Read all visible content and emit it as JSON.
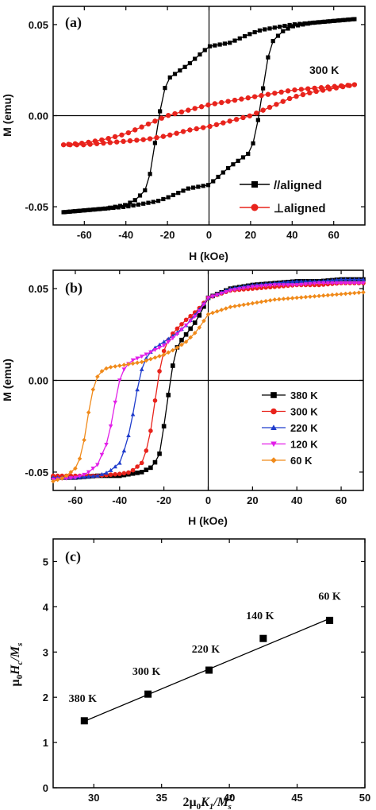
{
  "chart_data": [
    {
      "panel_label": "(a)",
      "type": "line",
      "annotation": "300 K",
      "xlabel": "H (kOe)",
      "ylabel": "M (emu)",
      "xlim": [
        -75,
        75
      ],
      "ylim": [
        -0.06,
        0.06
      ],
      "xticks": [
        -60,
        -40,
        -20,
        0,
        20,
        40,
        60
      ],
      "yticks": [
        -0.05,
        0.0,
        0.05
      ],
      "ytick_labels": [
        "-0.05",
        "0.00",
        "0.05"
      ],
      "legend_position": "bottom-right",
      "series": [
        {
          "name": "//aligned",
          "color": "#000000",
          "marker": "square",
          "branch_down": {
            "x": [
              70,
              60,
              50,
              40,
              30,
              25,
              20,
              10,
              0,
              -10,
              -20,
              -22,
              -24,
              -26,
              -28,
              -30,
              -35,
              -40,
              -50,
              -60,
              -70
            ],
            "y": [
              0.053,
              0.052,
              0.051,
              0.05,
              0.048,
              0.047,
              0.045,
              0.04,
              0.038,
              0.028,
              0.02,
              0.012,
              0.0,
              -0.015,
              -0.03,
              -0.04,
              -0.046,
              -0.049,
              -0.051,
              -0.052,
              -0.053
            ]
          },
          "branch_up": {
            "x": [
              -70,
              -60,
              -50,
              -40,
              -30,
              -25,
              -20,
              -10,
              0,
              10,
              20,
              22,
              24,
              26,
              28,
              30,
              35,
              40,
              50,
              60,
              70
            ],
            "y": [
              -0.053,
              -0.052,
              -0.051,
              -0.05,
              -0.048,
              -0.047,
              -0.045,
              -0.04,
              -0.038,
              -0.028,
              -0.02,
              -0.012,
              0.0,
              0.015,
              0.03,
              0.04,
              0.046,
              0.049,
              0.051,
              0.052,
              0.053
            ]
          }
        },
        {
          "name": "⊥aligned",
          "color": "#e8231c",
          "marker": "circle",
          "branch_down": {
            "x": [
              70,
              60,
              50,
              40,
              30,
              20,
              10,
              0,
              -10,
              -20,
              -30,
              -40,
              -50,
              -60,
              -70
            ],
            "y": [
              0.017,
              0.016,
              0.015,
              0.014,
              0.012,
              0.01,
              0.008,
              0.006,
              0.003,
              0.0,
              -0.005,
              -0.01,
              -0.013,
              -0.015,
              -0.016
            ]
          },
          "branch_up": {
            "x": [
              -70,
              -60,
              -50,
              -40,
              -30,
              -20,
              -10,
              0,
              10,
              20,
              30,
              40,
              50,
              60,
              70
            ],
            "y": [
              -0.016,
              -0.016,
              -0.015,
              -0.014,
              -0.013,
              -0.011,
              -0.008,
              -0.006,
              -0.003,
              0.0,
              0.005,
              0.01,
              0.013,
              0.015,
              0.017
            ]
          }
        }
      ]
    },
    {
      "panel_label": "(b)",
      "type": "line",
      "xlabel": "H (kOe)",
      "ylabel": "M (emu)",
      "xlim": [
        -70,
        70
      ],
      "ylim": [
        -0.06,
        0.06
      ],
      "xticks": [
        -60,
        -40,
        -20,
        0,
        20,
        40,
        60
      ],
      "yticks": [
        -0.05,
        0.0,
        0.05
      ],
      "ytick_labels": [
        "-0.05",
        "0.00",
        "0.05"
      ],
      "legend_position": "bottom-right",
      "series": [
        {
          "name": "380 K",
          "color": "#000000",
          "marker": "square",
          "x": [
            -70,
            -60,
            -50,
            -40,
            -30,
            -25,
            -22,
            -20,
            -18,
            -16,
            -14,
            -12,
            -10,
            -5,
            0,
            10,
            20,
            30,
            40,
            50,
            60,
            70
          ],
          "y": [
            -0.053,
            -0.053,
            -0.052,
            -0.052,
            -0.05,
            -0.047,
            -0.04,
            -0.025,
            -0.008,
            0.008,
            0.018,
            0.022,
            0.025,
            0.033,
            0.045,
            0.05,
            0.052,
            0.053,
            0.054,
            0.054,
            0.055,
            0.055
          ]
        },
        {
          "name": "300 K",
          "color": "#e8231c",
          "marker": "circle",
          "x": [
            -70,
            -60,
            -50,
            -40,
            -35,
            -30,
            -27,
            -25,
            -23,
            -21,
            -19,
            -17,
            -15,
            -10,
            -5,
            0,
            10,
            20,
            30,
            40,
            50,
            60,
            70
          ],
          "y": [
            -0.052,
            -0.052,
            -0.052,
            -0.051,
            -0.05,
            -0.045,
            -0.035,
            -0.02,
            -0.002,
            0.012,
            0.02,
            0.024,
            0.027,
            0.033,
            0.038,
            0.045,
            0.049,
            0.05,
            0.051,
            0.052,
            0.052,
            0.053,
            0.053
          ]
        },
        {
          "name": "220 K",
          "color": "#1f3ccc",
          "marker": "triangle-up",
          "x": [
            -70,
            -60,
            -50,
            -45,
            -40,
            -37,
            -35,
            -33,
            -31,
            -29,
            -27,
            -25,
            -20,
            -15,
            -10,
            -5,
            0,
            10,
            20,
            30,
            40,
            50,
            60,
            70
          ],
          "y": [
            -0.053,
            -0.053,
            -0.052,
            -0.05,
            -0.045,
            -0.035,
            -0.025,
            -0.012,
            0.002,
            0.01,
            0.014,
            0.017,
            0.021,
            0.025,
            0.03,
            0.037,
            0.045,
            0.05,
            0.052,
            0.053,
            0.054,
            0.054,
            0.055,
            0.055
          ]
        },
        {
          "name": "120 K",
          "color": "#e21fe8",
          "marker": "triangle-down",
          "x": [
            -70,
            -60,
            -55,
            -50,
            -46,
            -44,
            -42,
            -40,
            -38,
            -36,
            -34,
            -30,
            -25,
            -20,
            -15,
            -10,
            -5,
            0,
            10,
            20,
            30,
            40,
            50,
            60,
            70
          ],
          "y": [
            -0.054,
            -0.053,
            -0.051,
            -0.046,
            -0.035,
            -0.025,
            -0.012,
            0.0,
            0.006,
            0.009,
            0.011,
            0.013,
            0.016,
            0.019,
            0.024,
            0.03,
            0.036,
            0.045,
            0.049,
            0.051,
            0.052,
            0.052,
            0.053,
            0.053,
            0.053
          ]
        },
        {
          "name": "60  K",
          "color": "#f08a1a",
          "marker": "diamond",
          "x": [
            -70,
            -65,
            -60,
            -57,
            -55,
            -53,
            -51,
            -49,
            -47,
            -45,
            -40,
            -35,
            -30,
            -25,
            -20,
            -15,
            -10,
            -5,
            0,
            10,
            20,
            30,
            40,
            50,
            60,
            70
          ],
          "y": [
            -0.055,
            -0.053,
            -0.048,
            -0.04,
            -0.025,
            -0.01,
            0.0,
            0.004,
            0.006,
            0.007,
            0.008,
            0.009,
            0.01,
            0.012,
            0.014,
            0.017,
            0.021,
            0.027,
            0.036,
            0.04,
            0.042,
            0.044,
            0.045,
            0.046,
            0.047,
            0.048
          ]
        }
      ]
    },
    {
      "panel_label": "(c)",
      "type": "scatter",
      "xlabel_parts": {
        "prefix": "2μ",
        "sub0": "0",
        "K": "K",
        "sub1": "1",
        "slash": "/M",
        "sup": "2",
        "subs": "s"
      },
      "ylabel_parts": {
        "mu": "μ",
        "sub0": "0",
        "H": "H",
        "subc": "c",
        "slash": "/M",
        "subs": "s"
      },
      "xlim": [
        27,
        50
      ],
      "ylim": [
        0,
        5.5
      ],
      "xticks": [
        30,
        35,
        40,
        45,
        50
      ],
      "yticks": [
        0,
        1,
        2,
        3,
        4,
        5
      ],
      "fit_line": {
        "x": [
          29.3,
          47.4
        ],
        "y": [
          1.47,
          3.74
        ]
      },
      "points": [
        {
          "label": "380 K",
          "x": 29.3,
          "y": 1.48
        },
        {
          "label": "300 K",
          "x": 34.0,
          "y": 2.07
        },
        {
          "label": "220 K",
          "x": 38.5,
          "y": 2.6
        },
        {
          "label": "140 K",
          "x": 42.5,
          "y": 3.3
        },
        {
          "label": "60 K",
          "x": 47.4,
          "y": 3.7
        }
      ]
    }
  ]
}
